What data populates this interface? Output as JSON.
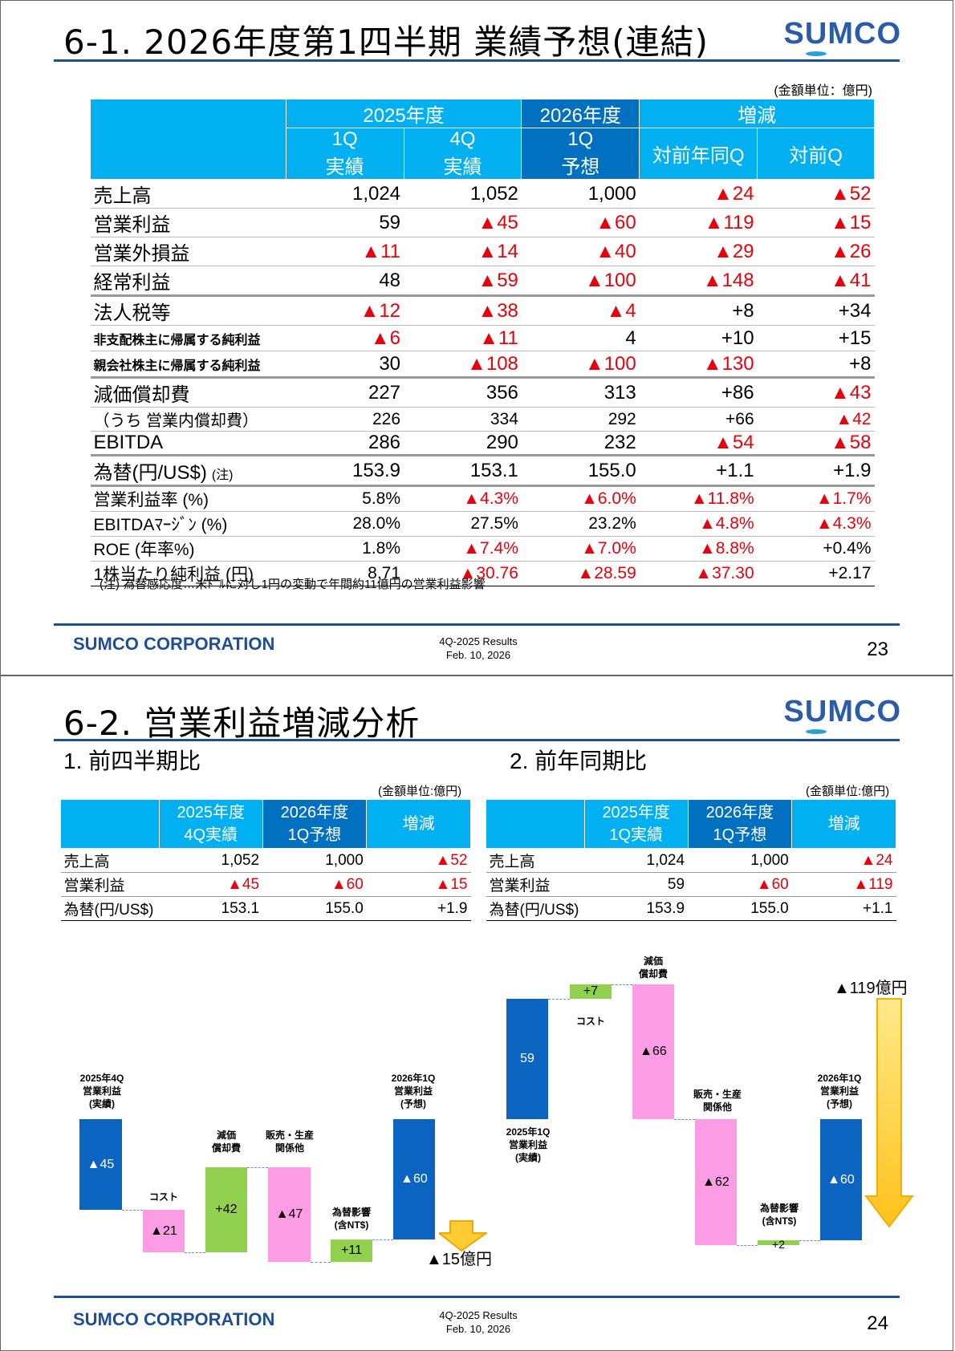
{
  "slide1": {
    "title": "6-1. 2026年度第1四半期 業績予想(連結)",
    "logo": "SUMCO",
    "unit": "(金額単位：億円)",
    "headers": {
      "fy2025": "2025年度",
      "fy2026": "2026年度",
      "change": "増減",
      "q1_actual": [
        "1Q",
        "実績"
      ],
      "q4_actual": [
        "4Q",
        "実績"
      ],
      "q1_forecast": [
        "1Q",
        "予想"
      ],
      "yoy": "対前年同Q",
      "qoq": "対前Q"
    },
    "rows": [
      {
        "label": "売上高",
        "values": [
          "1,024",
          "1,052",
          "1,000",
          "▲24",
          "▲52"
        ]
      },
      {
        "label": "営業利益",
        "values": [
          "59",
          "▲45",
          "▲60",
          "▲119",
          "▲15"
        ]
      },
      {
        "label": "営業外損益",
        "values": [
          "▲11",
          "▲14",
          "▲40",
          "▲29",
          "▲26"
        ]
      },
      {
        "label": "経常利益",
        "values": [
          "48",
          "▲59",
          "▲100",
          "▲148",
          "▲41"
        ]
      },
      {
        "label": "法人税等",
        "values": [
          "▲12",
          "▲38",
          "▲4",
          "+8",
          "+34"
        ]
      },
      {
        "label": "非支配株主に帰属する純利益",
        "values": [
          "▲6",
          "▲11",
          "4",
          "+10",
          "+15"
        ]
      },
      {
        "label": "親会社株主に帰属する純利益",
        "values": [
          "30",
          "▲108",
          "▲100",
          "▲130",
          "+8"
        ]
      },
      {
        "label": "減価償却費",
        "values": [
          "227",
          "356",
          "313",
          "+86",
          "▲43"
        ]
      },
      {
        "label": "（うち 営業内償却費）",
        "values": [
          "226",
          "334",
          "292",
          "+66",
          "▲42"
        ]
      },
      {
        "label": "EBITDA",
        "values": [
          "286",
          "290",
          "232",
          "▲54",
          "▲58"
        ]
      },
      {
        "label": "為替(円/US$)",
        "label_note": "(注)",
        "values": [
          "153.9",
          "153.1",
          "155.0",
          "+1.1",
          "+1.9"
        ]
      },
      {
        "label": "営業利益率 (%)",
        "values": [
          "5.8%",
          "▲4.3%",
          "▲6.0%",
          "▲11.8%",
          "▲1.7%"
        ]
      },
      {
        "label": "EBITDAﾏｰｼﾞﾝ (%)",
        "values": [
          "28.0%",
          "27.5%",
          "23.2%",
          "▲4.8%",
          "▲4.3%"
        ]
      },
      {
        "label": "ROE (年率%)",
        "values": [
          "1.8%",
          "▲7.4%",
          "▲7.0%",
          "▲8.8%",
          "+0.4%"
        ]
      },
      {
        "label": "1株当たり純利益 (円)",
        "values": [
          "8.71",
          "▲30.76",
          "▲28.59",
          "▲37.30",
          "+2.17"
        ]
      }
    ],
    "note": "(注) 為替感応度…米ﾄﾞﾙに対し1円の変動で年間約11億円の営業利益影響",
    "footer": {
      "corp": "SUMCO CORPORATION",
      "doc": "4Q-2025 Results",
      "date": "Feb. 10, 2026",
      "page": "23"
    }
  },
  "slide2": {
    "title": "6-2. 営業利益増減分析",
    "logo": "SUMCO",
    "left": {
      "subtitle": "1. 前四半期比",
      "unit": "(金額単位:億円)",
      "headers": [
        [
          "2025年度",
          "4Q実績"
        ],
        [
          "2026年度",
          "1Q予想"
        ],
        [
          "増減"
        ]
      ],
      "rows": [
        {
          "label": "売上高",
          "values": [
            "1,052",
            "1,000",
            "▲52"
          ]
        },
        {
          "label": "営業利益",
          "values": [
            "▲45",
            "▲60",
            "▲15"
          ]
        },
        {
          "label": "為替(円/US$)",
          "values": [
            "153.1",
            "155.0",
            "+1.9"
          ]
        }
      ]
    },
    "right": {
      "subtitle": "2. 前年同期比",
      "unit": "(金額単位:億円)",
      "headers": [
        [
          "2025年度",
          "1Q実績"
        ],
        [
          "2026年度",
          "1Q予想"
        ],
        [
          "増減"
        ]
      ],
      "rows": [
        {
          "label": "売上高",
          "values": [
            "1,024",
            "1,000",
            "▲24"
          ]
        },
        {
          "label": "営業利益",
          "values": [
            "59",
            "▲60",
            "▲119"
          ]
        },
        {
          "label": "為替(円/US$)",
          "values": [
            "153.9",
            "155.0",
            "+1.1"
          ]
        }
      ]
    },
    "waterfall_left": {
      "start_label": [
        "2025年4Q",
        "営業利益",
        "(実績)"
      ],
      "start_value": "▲45",
      "cost_label": "コスト",
      "cost_value": "▲21",
      "dep_label": [
        "減価",
        "償却費"
      ],
      "dep_value": "+42",
      "sales_label": [
        "販売・生産",
        "関係他"
      ],
      "sales_value": "▲47",
      "fx_label": [
        "為替影響",
        "(含NT$)"
      ],
      "fx_value": "+11",
      "end_label": [
        "2026年1Q",
        "営業利益",
        "(予想)"
      ],
      "end_value": "▲60",
      "total": "▲15億円"
    },
    "waterfall_right": {
      "start_label": [
        "2025年1Q",
        "営業利益",
        "(実績)"
      ],
      "start_value": "59",
      "cost_label": "コスト",
      "cost_value": "+7",
      "dep_label": [
        "減価",
        "償却費"
      ],
      "dep_value": "▲66",
      "sales_label": [
        "販売・生産",
        "関係他"
      ],
      "sales_value": "▲62",
      "fx_label": [
        "為替影響",
        "(含NT$)"
      ],
      "fx_value": "+2",
      "end_label": [
        "2026年1Q",
        "営業利益",
        "(予想)"
      ],
      "end_value": "▲60",
      "total": "▲119億円"
    },
    "footer": {
      "corp": "SUMCO CORPORATION",
      "doc": "4Q-2025 Results",
      "date": "Feb. 10, 2026",
      "page": "24"
    }
  }
}
